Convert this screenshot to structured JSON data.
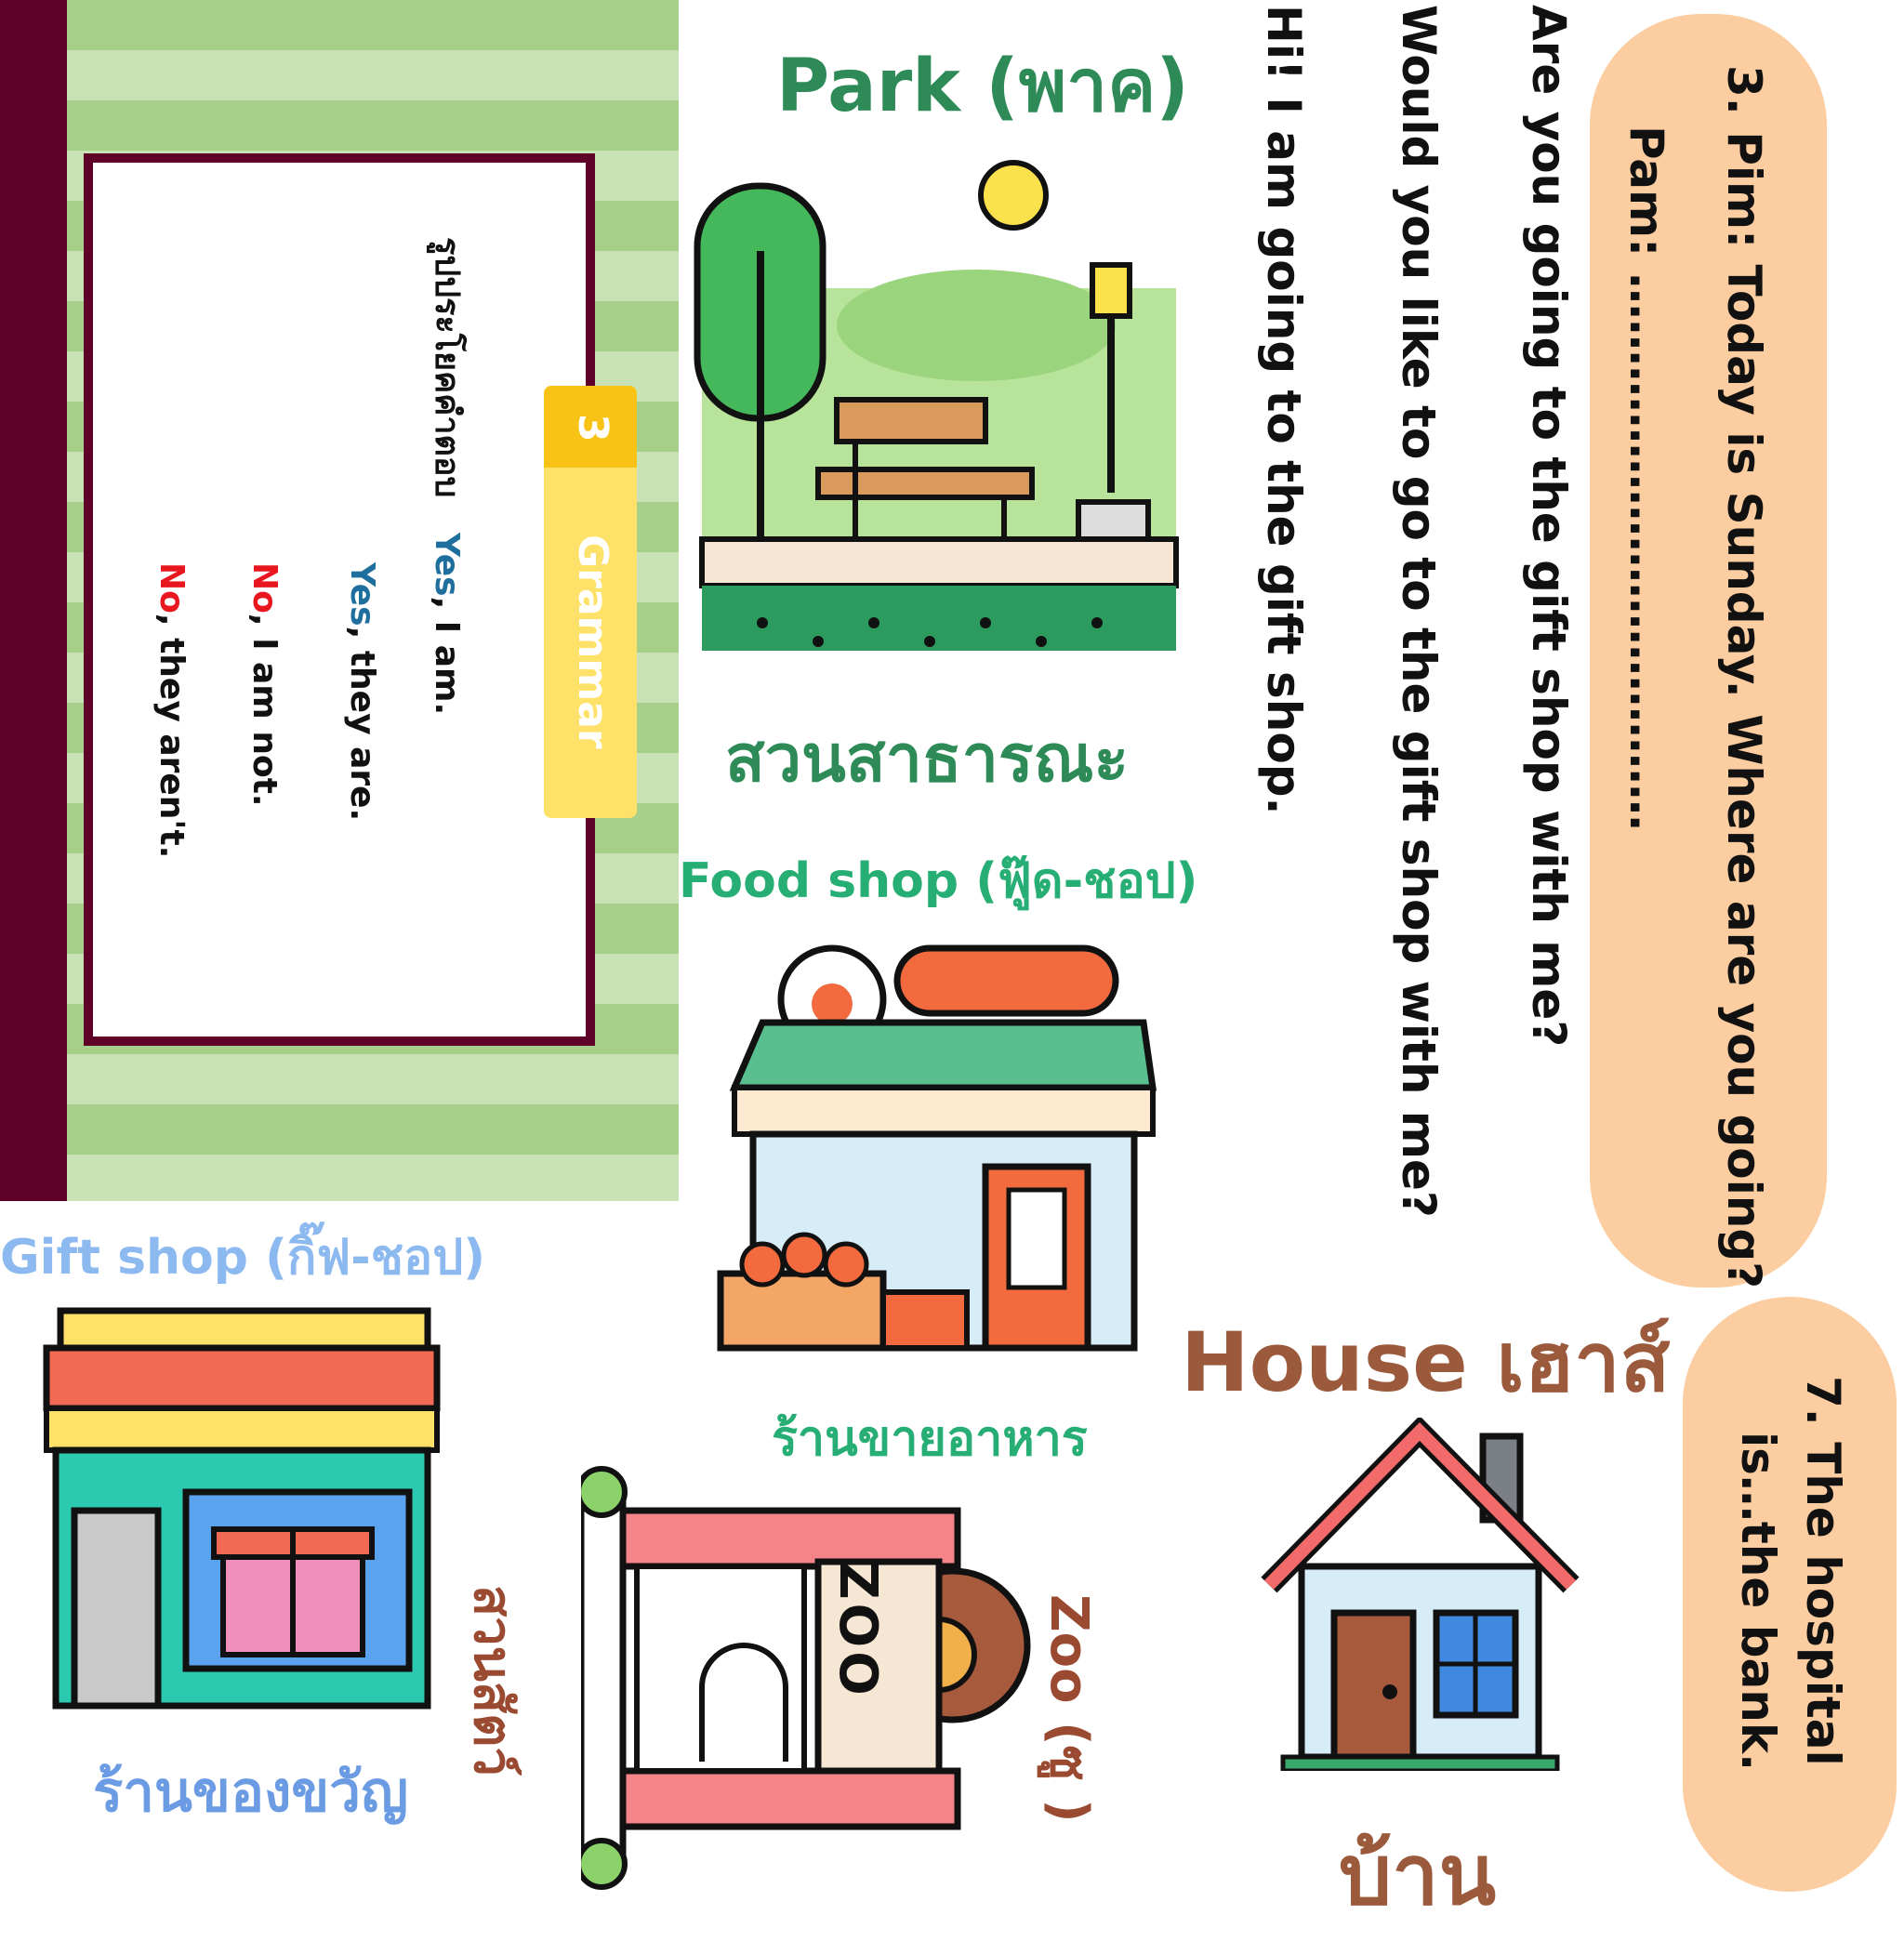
{
  "grammar": {
    "tab_number": "3",
    "tab_label": "Grammar",
    "heading_prefix": "รูปประโยคคำตอบ",
    "answers": [
      {
        "word": "Yes",
        "rest": ", I am.",
        "color": "#1f6f9e"
      },
      {
        "word": "Yes",
        "rest": ", they are.",
        "color": "#1f6f9e"
      },
      {
        "word": "No",
        "rest": ", I am not.",
        "color": "#e8171f"
      },
      {
        "word": "No",
        "rest": ", they aren't.",
        "color": "#e8171f"
      }
    ]
  },
  "places": {
    "park_title": "Park (พาค)",
    "park_thai": "สวนสาธารณะ",
    "food_title": "Food shop (ฟู๊ด-ชอป)",
    "food_thai": "ร้านขายอาหาร",
    "gift_title": "Gift shop (กิ๊ฟ-ชอป)",
    "gift_thai": "ร้านของขวัญ",
    "zoo_title": "Zoo (ซู )",
    "zoo_thai": "สวนสัตว์",
    "zoo_sign": "ZOO",
    "house_title": "House เฮาส์",
    "house_thai": "บ้าน"
  },
  "sentences": {
    "line1": "Hi! I am going to the gift shop.",
    "line2": "Would you like to go to the gift shop with me?",
    "line3": "Are you going to the gift shop with me?"
  },
  "questions": {
    "q3_line1": "3. Pim: Today is Sunday. Where are you going?",
    "q3_line2": "Pam: ………………………………",
    "q7_line1": "7. The hospital",
    "q7_line2": "is…the bank."
  },
  "colors": {
    "park_green": "#2e8b57",
    "food_green": "#27ae74",
    "gift_blue": "#8cb9ef",
    "gift_thai_blue": "#6a9be3",
    "house_brown": "#9b5a3c",
    "zoo_brown": "#9b4a32",
    "pill": "#fbcda0",
    "maroon": "#5e0028"
  }
}
